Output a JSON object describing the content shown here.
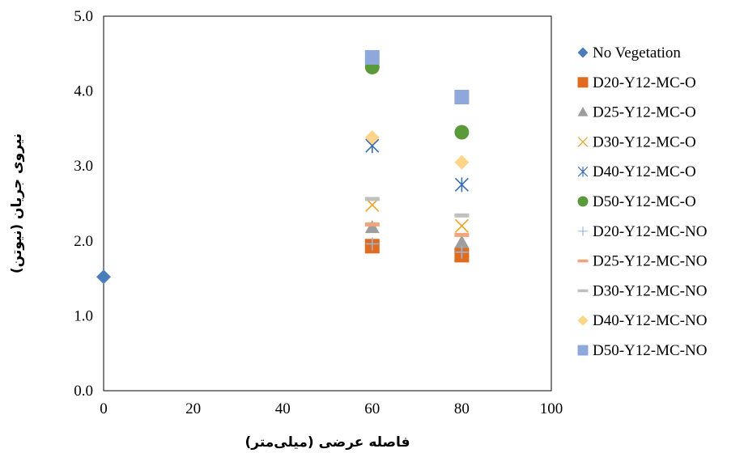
{
  "chart_data": {
    "type": "scatter",
    "title": "",
    "xlabel": "فاصله عرضی (میلی‌متر)",
    "ylabel": "نیروی جریان (نیوتن)",
    "xlim": [
      0,
      100
    ],
    "ylim": [
      0,
      5
    ],
    "xticks": [
      "0",
      "20",
      "40",
      "60",
      "80",
      "100"
    ],
    "yticks": [
      "0.0",
      "1.0",
      "2.0",
      "3.0",
      "4.0",
      "5.0"
    ],
    "grid": false,
    "legend_position": "right",
    "series": [
      {
        "name": "No Vegetation",
        "marker": "diamond",
        "color": "#4a7ebb",
        "points": [
          [
            0,
            1.52
          ]
        ]
      },
      {
        "name": "D20-Y12-MC-O",
        "marker": "square",
        "color": "#e06c1f",
        "points": [
          [
            60,
            1.93
          ],
          [
            80,
            1.81
          ]
        ]
      },
      {
        "name": "D25-Y12-MC-O",
        "marker": "triangle",
        "color": "#9e9e9e",
        "points": [
          [
            60,
            2.18
          ],
          [
            80,
            1.98
          ]
        ]
      },
      {
        "name": "D30-Y12-MC-O",
        "marker": "x",
        "color": "#f2a11f",
        "points": [
          [
            60,
            2.48
          ],
          [
            80,
            2.2
          ]
        ]
      },
      {
        "name": "D40-Y12-MC-O",
        "marker": "star",
        "color": "#3a6bb5",
        "points": [
          [
            60,
            3.27
          ],
          [
            80,
            2.75
          ]
        ]
      },
      {
        "name": "D50-Y12-MC-O",
        "marker": "circle",
        "color": "#5b9a3a",
        "points": [
          [
            60,
            4.32
          ],
          [
            80,
            3.45
          ]
        ]
      },
      {
        "name": "D20-Y12-MC-NO",
        "marker": "plus",
        "color": "#9bb6dc",
        "points": [
          [
            60,
            1.96
          ],
          [
            80,
            1.85
          ]
        ]
      },
      {
        "name": "D25-Y12-MC-NO",
        "marker": "dash",
        "color": "#f4a47c",
        "points": [
          [
            60,
            2.22
          ],
          [
            80,
            2.08
          ]
        ]
      },
      {
        "name": "D30-Y12-MC-NO",
        "marker": "dash",
        "color": "#c0c0c0",
        "points": [
          [
            60,
            2.56
          ],
          [
            80,
            2.34
          ]
        ]
      },
      {
        "name": "D40-Y12-MC-NO",
        "marker": "diamond",
        "color": "#ffd58a",
        "points": [
          [
            60,
            3.38
          ],
          [
            80,
            3.05
          ]
        ]
      },
      {
        "name": "D50-Y12-MC-NO",
        "marker": "square",
        "color": "#8fa8dc",
        "points": [
          [
            60,
            4.45
          ],
          [
            80,
            3.92
          ]
        ]
      }
    ]
  }
}
